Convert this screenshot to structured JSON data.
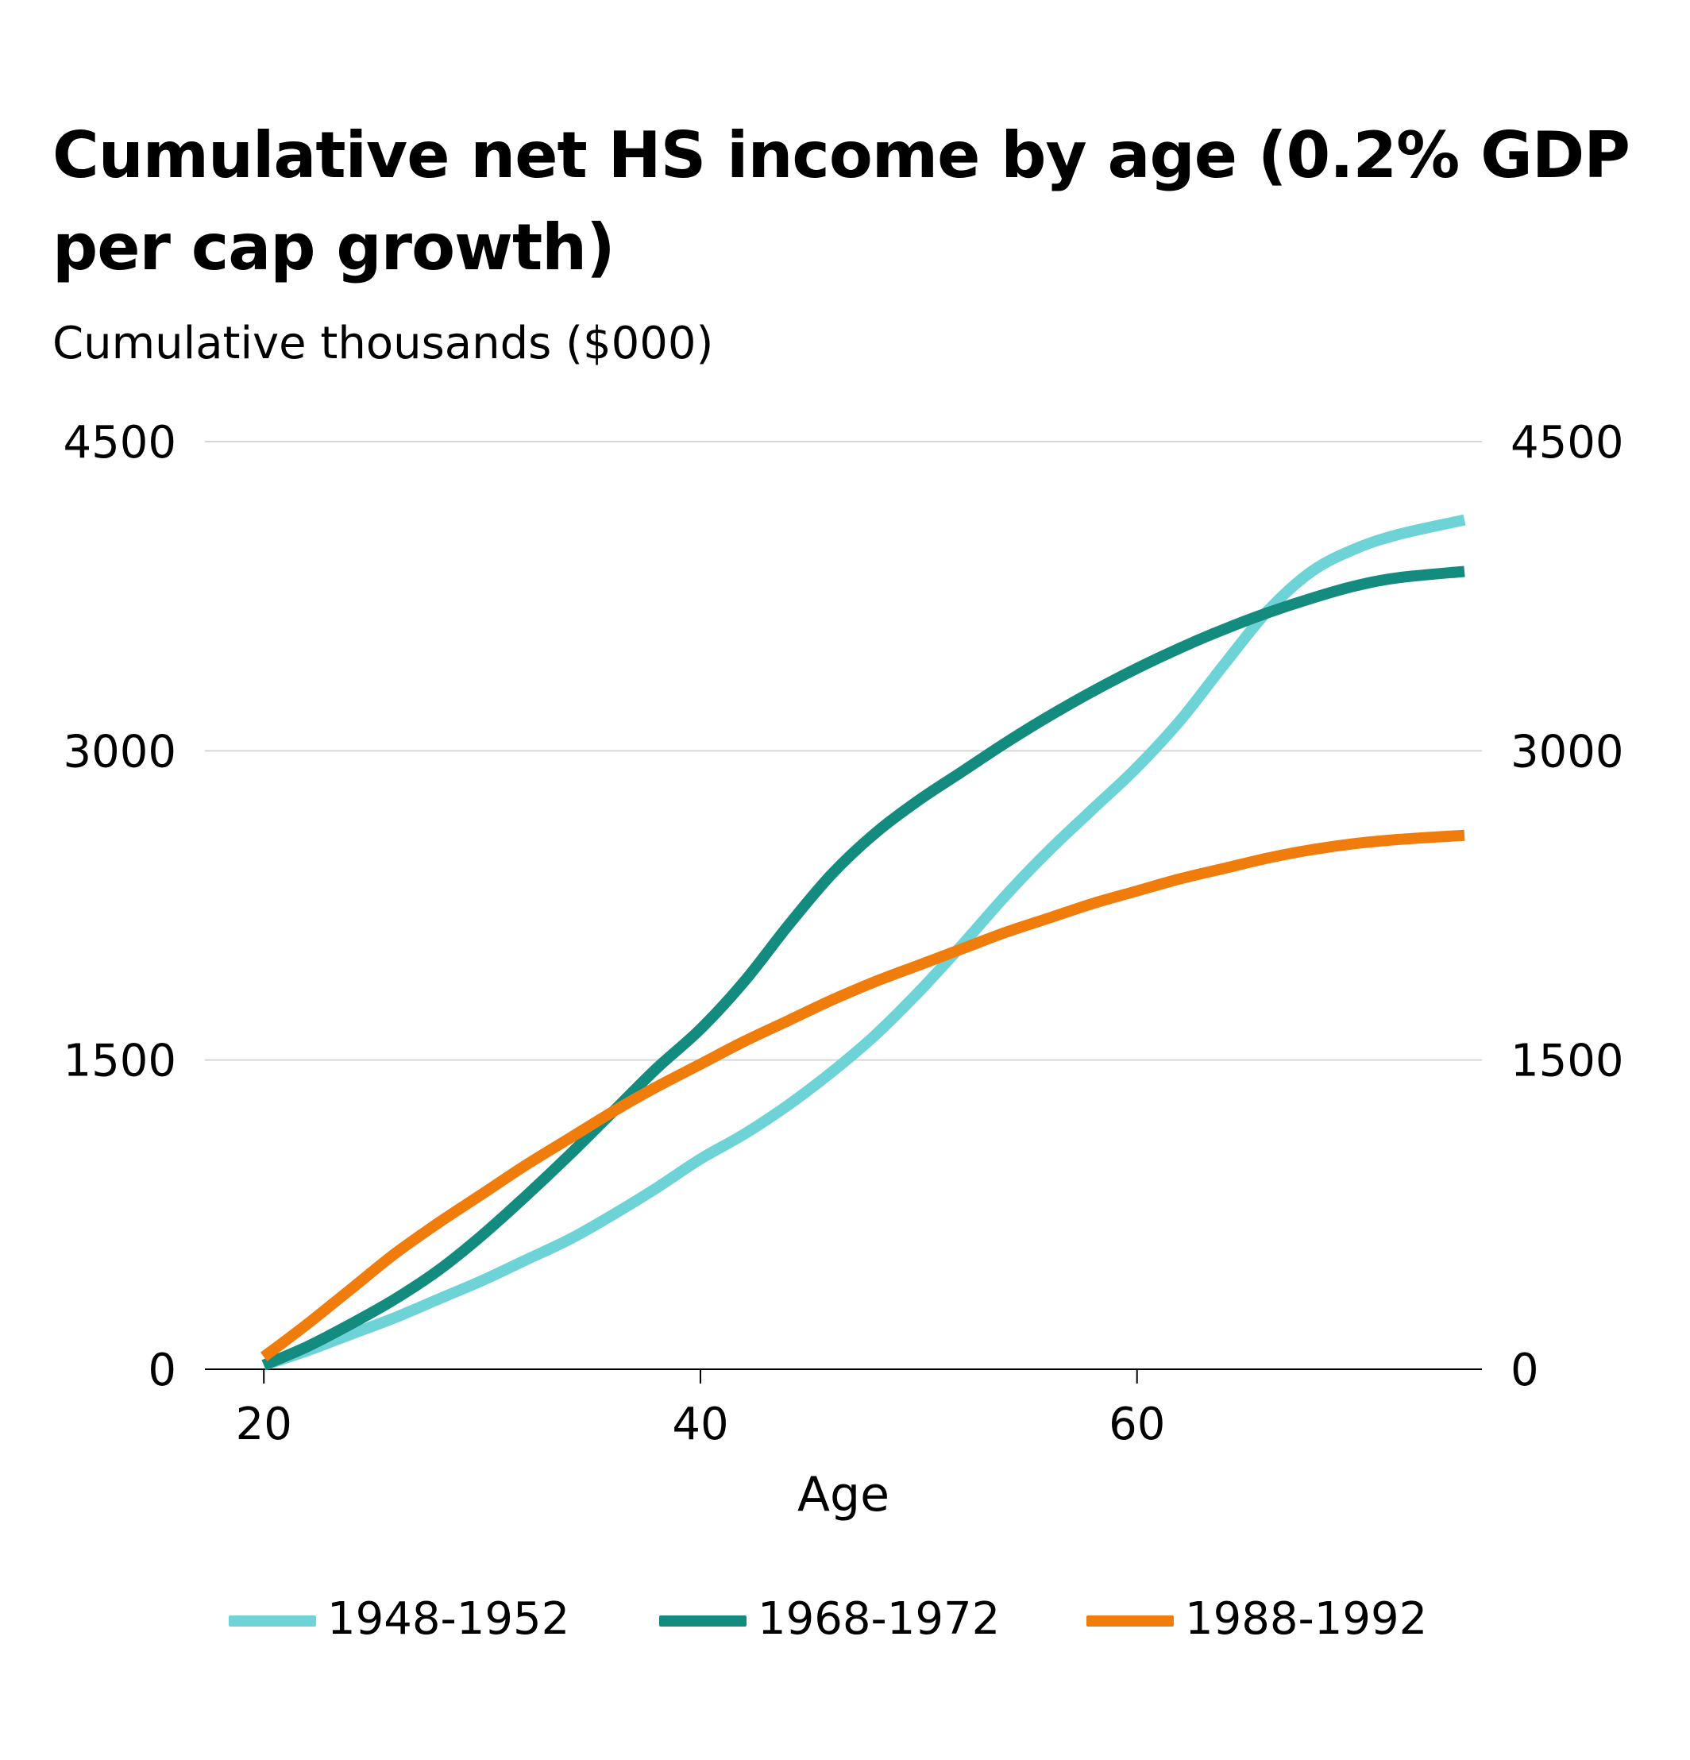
{
  "title": "Cumulative net HS income by age (0.2% GDP per cap growth)",
  "subtitle": "Cumulative thousands ($000)",
  "chart_data": {
    "type": "line",
    "title": "Cumulative net HS income by age (0.2% GDP per cap growth)",
    "subtitle": "Cumulative thousands ($000)",
    "xlabel": "Age",
    "ylabel": "Cumulative thousands ($000)",
    "xlim": [
      17.3,
      75.8
    ],
    "ylim": [
      0,
      4500
    ],
    "xticks": [
      20,
      40,
      60
    ],
    "yticks": [
      0,
      1500,
      3000,
      4500
    ],
    "y_axis_sides": [
      "left",
      "right"
    ],
    "grid": true,
    "legend_position": "bottom",
    "x": [
      20,
      22,
      24,
      26,
      28,
      30,
      32,
      34,
      36,
      38,
      40,
      42,
      44,
      46,
      48,
      50,
      52,
      54,
      56,
      58,
      60,
      62,
      64,
      66,
      68,
      70,
      72,
      75
    ],
    "series": [
      {
        "name": "1948-1952",
        "color": "#6dd3d6",
        "values": [
          20,
          90,
          170,
          250,
          340,
          430,
          530,
          630,
          750,
          880,
          1020,
          1140,
          1280,
          1440,
          1620,
          1830,
          2060,
          2300,
          2520,
          2720,
          2920,
          3150,
          3420,
          3680,
          3870,
          3980,
          4050,
          4120
        ]
      },
      {
        "name": "1968-1972",
        "color": "#138b7e",
        "values": [
          20,
          110,
          220,
          340,
          480,
          650,
          840,
          1040,
          1250,
          1460,
          1650,
          1880,
          2150,
          2400,
          2600,
          2760,
          2900,
          3040,
          3170,
          3290,
          3400,
          3500,
          3590,
          3670,
          3740,
          3800,
          3840,
          3870
        ]
      },
      {
        "name": "1988-1992",
        "color": "#ef7c0b",
        "values": [
          60,
          220,
          390,
          560,
          710,
          850,
          990,
          1120,
          1250,
          1370,
          1480,
          1590,
          1690,
          1790,
          1880,
          1960,
          2040,
          2120,
          2190,
          2260,
          2320,
          2380,
          2430,
          2480,
          2520,
          2550,
          2570,
          2590
        ]
      }
    ]
  }
}
